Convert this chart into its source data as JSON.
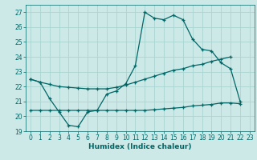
{
  "xlabel": "Humidex (Indice chaleur)",
  "background_color": "#cce9e7",
  "grid_color": "#aad4d1",
  "line_color": "#006666",
  "xlim": [
    -0.5,
    23.5
  ],
  "ylim": [
    19,
    27.5
  ],
  "yticks": [
    19,
    20,
    21,
    22,
    23,
    24,
    25,
    26,
    27
  ],
  "xticks": [
    0,
    1,
    2,
    3,
    4,
    5,
    6,
    7,
    8,
    9,
    10,
    11,
    12,
    13,
    14,
    15,
    16,
    17,
    18,
    19,
    20,
    21,
    22,
    23
  ],
  "line1_y": [
    22.5,
    22.3,
    21.2,
    20.3,
    19.4,
    19.3,
    20.3,
    20.4,
    21.5,
    21.7,
    22.2,
    23.4,
    27.0,
    26.6,
    26.5,
    26.8,
    26.5,
    25.2,
    24.5,
    24.4,
    23.6,
    23.2,
    21.0,
    null
  ],
  "line2_y": [
    22.5,
    22.3,
    22.15,
    22.0,
    21.95,
    21.9,
    21.85,
    21.85,
    21.85,
    21.95,
    22.1,
    22.3,
    22.5,
    22.7,
    22.9,
    23.1,
    23.2,
    23.4,
    23.5,
    23.7,
    23.85,
    24.0,
    null,
    null
  ],
  "line3_y": [
    20.4,
    20.4,
    20.4,
    20.4,
    20.4,
    20.4,
    20.4,
    20.4,
    20.4,
    20.4,
    20.4,
    20.4,
    20.4,
    20.45,
    20.5,
    20.55,
    20.6,
    20.7,
    20.75,
    20.8,
    20.9,
    20.9,
    20.85,
    null
  ]
}
